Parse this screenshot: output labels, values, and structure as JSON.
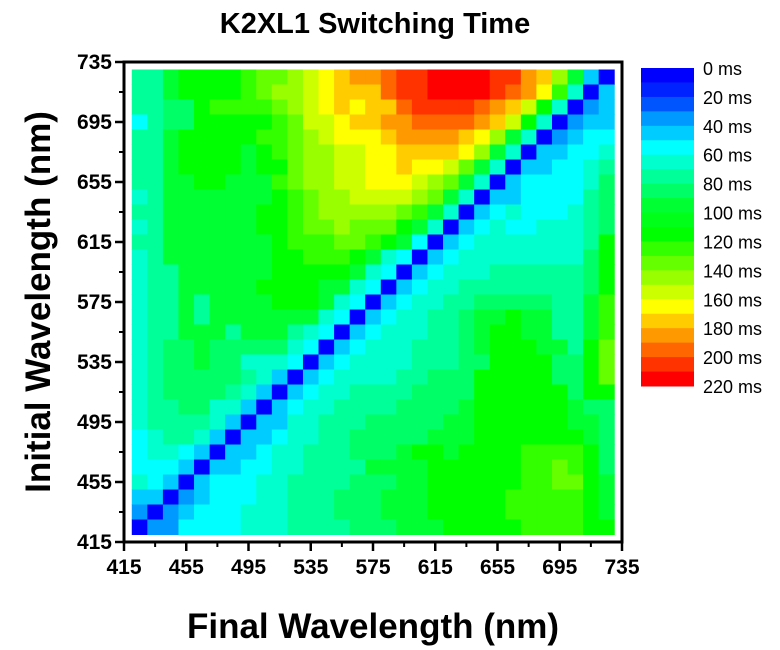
{
  "chart_data": {
    "type": "heatmap",
    "title": "K2XL1 Switching Time",
    "xlabel": "Final Wavelength (nm)",
    "ylabel": "Initial Wavelength (nm)",
    "xlim": [
      415,
      735
    ],
    "ylim": [
      415,
      735
    ],
    "xticks": [
      "415",
      "455",
      "495",
      "535",
      "575",
      "615",
      "655",
      "695",
      "735"
    ],
    "yticks": [
      "415",
      "455",
      "495",
      "535",
      "575",
      "615",
      "655",
      "695",
      "735"
    ],
    "x": [
      425,
      435,
      445,
      455,
      465,
      475,
      485,
      495,
      505,
      515,
      525,
      535,
      545,
      555,
      565,
      575,
      585,
      595,
      605,
      615,
      625,
      635,
      645,
      655,
      665,
      675,
      685,
      695,
      705,
      715,
      725
    ],
    "y_rows_top_to_bottom": [
      725,
      715,
      705,
      695,
      685,
      675,
      665,
      655,
      645,
      635,
      625,
      615,
      605,
      595,
      585,
      575,
      565,
      555,
      545,
      535,
      525,
      515,
      505,
      495,
      485,
      475,
      465,
      455,
      445,
      435,
      425
    ],
    "cell_size_nm": 10,
    "z_unit": "ms",
    "z": [
      [
        75,
        75,
        95,
        115,
        115,
        115,
        115,
        125,
        135,
        135,
        145,
        155,
        165,
        175,
        185,
        185,
        195,
        205,
        205,
        215,
        215,
        215,
        215,
        205,
        205,
        185,
        175,
        145,
        95,
        45,
        5
      ],
      [
        75,
        75,
        95,
        115,
        115,
        115,
        115,
        125,
        135,
        145,
        145,
        155,
        165,
        175,
        175,
        175,
        195,
        205,
        205,
        215,
        215,
        215,
        215,
        205,
        195,
        185,
        165,
        125,
        65,
        5,
        45
      ],
      [
        75,
        75,
        85,
        85,
        115,
        125,
        125,
        125,
        125,
        135,
        145,
        155,
        165,
        175,
        165,
        175,
        175,
        195,
        205,
        205,
        205,
        205,
        195,
        185,
        175,
        155,
        115,
        65,
        5,
        35,
        45
      ],
      [
        55,
        75,
        85,
        85,
        115,
        115,
        115,
        115,
        115,
        125,
        135,
        155,
        155,
        165,
        175,
        175,
        185,
        185,
        195,
        195,
        195,
        195,
        185,
        175,
        155,
        115,
        65,
        5,
        35,
        45,
        45
      ],
      [
        75,
        75,
        95,
        115,
        115,
        115,
        115,
        115,
        125,
        125,
        135,
        145,
        155,
        165,
        165,
        165,
        175,
        185,
        185,
        185,
        185,
        175,
        165,
        145,
        95,
        65,
        5,
        35,
        45,
        55,
        55
      ],
      [
        75,
        75,
        95,
        115,
        115,
        115,
        115,
        95,
        115,
        125,
        135,
        145,
        145,
        155,
        155,
        165,
        165,
        175,
        175,
        175,
        175,
        165,
        145,
        95,
        65,
        5,
        45,
        45,
        55,
        55,
        65
      ],
      [
        75,
        75,
        95,
        115,
        115,
        115,
        115,
        95,
        115,
        115,
        135,
        145,
        145,
        155,
        155,
        165,
        165,
        175,
        165,
        165,
        155,
        135,
        95,
        65,
        5,
        45,
        45,
        55,
        55,
        65,
        75
      ],
      [
        75,
        75,
        95,
        95,
        115,
        115,
        95,
        95,
        95,
        125,
        135,
        145,
        145,
        155,
        155,
        165,
        165,
        165,
        155,
        145,
        135,
        95,
        65,
        5,
        45,
        55,
        55,
        55,
        55,
        65,
        85
      ],
      [
        65,
        75,
        95,
        95,
        95,
        95,
        95,
        95,
        95,
        115,
        125,
        135,
        145,
        145,
        155,
        155,
        155,
        155,
        145,
        135,
        95,
        65,
        5,
        45,
        45,
        55,
        55,
        55,
        55,
        75,
        85
      ],
      [
        75,
        75,
        95,
        95,
        95,
        95,
        95,
        95,
        115,
        115,
        125,
        135,
        145,
        145,
        145,
        145,
        145,
        135,
        125,
        95,
        65,
        5,
        45,
        55,
        65,
        55,
        55,
        55,
        65,
        75,
        85
      ],
      [
        65,
        75,
        95,
        95,
        95,
        95,
        95,
        95,
        115,
        115,
        125,
        135,
        135,
        145,
        135,
        135,
        135,
        115,
        95,
        65,
        5,
        45,
        55,
        65,
        55,
        55,
        65,
        65,
        65,
        75,
        85
      ],
      [
        75,
        75,
        95,
        95,
        95,
        95,
        95,
        95,
        95,
        115,
        125,
        125,
        125,
        135,
        135,
        125,
        115,
        95,
        55,
        5,
        45,
        55,
        65,
        65,
        65,
        65,
        65,
        65,
        65,
        75,
        115
      ],
      [
        65,
        75,
        95,
        95,
        95,
        95,
        95,
        95,
        95,
        115,
        115,
        125,
        125,
        125,
        115,
        95,
        65,
        55,
        5,
        45,
        55,
        65,
        65,
        65,
        65,
        65,
        65,
        65,
        65,
        85,
        115
      ],
      [
        65,
        75,
        75,
        95,
        95,
        95,
        95,
        95,
        95,
        115,
        115,
        115,
        115,
        115,
        95,
        65,
        55,
        5,
        45,
        55,
        65,
        65,
        65,
        75,
        75,
        75,
        75,
        75,
        75,
        85,
        115
      ],
      [
        65,
        75,
        75,
        95,
        95,
        95,
        95,
        95,
        115,
        115,
        115,
        115,
        95,
        95,
        65,
        55,
        5,
        45,
        55,
        65,
        65,
        75,
        75,
        75,
        75,
        75,
        75,
        75,
        75,
        85,
        115
      ],
      [
        65,
        75,
        75,
        95,
        75,
        95,
        95,
        95,
        95,
        115,
        115,
        115,
        95,
        65,
        55,
        5,
        45,
        55,
        65,
        65,
        75,
        75,
        85,
        85,
        85,
        85,
        85,
        75,
        75,
        95,
        125
      ],
      [
        65,
        75,
        75,
        95,
        75,
        95,
        95,
        95,
        95,
        95,
        95,
        95,
        65,
        55,
        5,
        45,
        55,
        65,
        65,
        75,
        75,
        85,
        95,
        95,
        115,
        95,
        95,
        75,
        75,
        95,
        125
      ],
      [
        65,
        75,
        75,
        95,
        95,
        95,
        75,
        95,
        95,
        95,
        75,
        65,
        55,
        5,
        45,
        55,
        65,
        65,
        65,
        75,
        75,
        85,
        95,
        115,
        115,
        95,
        95,
        75,
        75,
        95,
        125
      ],
      [
        65,
        75,
        85,
        85,
        95,
        85,
        85,
        85,
        85,
        85,
        65,
        55,
        5,
        45,
        55,
        65,
        65,
        65,
        75,
        75,
        75,
        85,
        95,
        115,
        115,
        115,
        95,
        95,
        75,
        115,
        135
      ],
      [
        65,
        75,
        85,
        85,
        95,
        85,
        85,
        65,
        65,
        65,
        55,
        5,
        45,
        55,
        65,
        65,
        65,
        65,
        75,
        75,
        75,
        85,
        85,
        115,
        115,
        115,
        115,
        85,
        85,
        115,
        135
      ],
      [
        65,
        75,
        85,
        85,
        85,
        85,
        85,
        75,
        65,
        45,
        5,
        45,
        55,
        65,
        65,
        65,
        65,
        75,
        75,
        85,
        85,
        85,
        115,
        115,
        115,
        115,
        115,
        85,
        85,
        115,
        135
      ],
      [
        65,
        75,
        85,
        85,
        85,
        85,
        75,
        65,
        45,
        5,
        45,
        55,
        65,
        65,
        75,
        75,
        75,
        75,
        85,
        85,
        85,
        85,
        115,
        115,
        115,
        115,
        115,
        115,
        85,
        115,
        115
      ],
      [
        65,
        75,
        75,
        85,
        85,
        65,
        65,
        45,
        5,
        45,
        55,
        65,
        65,
        75,
        75,
        75,
        75,
        85,
        85,
        85,
        85,
        95,
        115,
        115,
        115,
        115,
        115,
        115,
        95,
        85,
        85
      ],
      [
        65,
        75,
        75,
        75,
        75,
        65,
        45,
        5,
        45,
        45,
        65,
        65,
        75,
        75,
        75,
        85,
        85,
        85,
        85,
        85,
        95,
        95,
        115,
        115,
        115,
        115,
        115,
        115,
        95,
        95,
        85
      ],
      [
        55,
        65,
        75,
        75,
        65,
        45,
        5,
        45,
        45,
        55,
        65,
        65,
        75,
        75,
        85,
        85,
        85,
        85,
        85,
        95,
        95,
        95,
        115,
        115,
        115,
        115,
        115,
        115,
        115,
        95,
        85
      ],
      [
        55,
        65,
        65,
        55,
        45,
        5,
        45,
        45,
        55,
        65,
        65,
        75,
        75,
        75,
        85,
        85,
        85,
        95,
        115,
        115,
        95,
        115,
        115,
        115,
        115,
        125,
        125,
        125,
        125,
        115,
        85
      ],
      [
        55,
        55,
        55,
        45,
        5,
        45,
        45,
        55,
        55,
        65,
        65,
        75,
        75,
        75,
        75,
        95,
        95,
        95,
        95,
        115,
        115,
        115,
        115,
        115,
        115,
        125,
        125,
        135,
        125,
        115,
        85
      ],
      [
        65,
        55,
        45,
        5,
        45,
        55,
        55,
        55,
        65,
        65,
        75,
        75,
        75,
        75,
        85,
        85,
        85,
        95,
        95,
        115,
        115,
        115,
        115,
        115,
        115,
        125,
        125,
        135,
        135,
        115,
        95
      ],
      [
        45,
        45,
        5,
        35,
        45,
        55,
        55,
        55,
        65,
        65,
        75,
        75,
        75,
        85,
        85,
        85,
        95,
        95,
        95,
        115,
        115,
        115,
        115,
        115,
        125,
        125,
        125,
        125,
        125,
        115,
        95
      ],
      [
        35,
        5,
        35,
        45,
        55,
        55,
        55,
        65,
        65,
        65,
        75,
        75,
        75,
        85,
        85,
        85,
        95,
        95,
        95,
        115,
        115,
        115,
        115,
        115,
        125,
        125,
        125,
        125,
        125,
        115,
        95
      ],
      [
        5,
        35,
        35,
        55,
        55,
        55,
        55,
        65,
        65,
        65,
        75,
        75,
        75,
        75,
        85,
        85,
        85,
        95,
        95,
        95,
        115,
        115,
        115,
        115,
        115,
        125,
        125,
        125,
        125,
        115,
        115
      ]
    ],
    "colorbar": {
      "range": [
        0,
        220
      ],
      "step": 10,
      "labels": [
        "0 ms",
        "20 ms",
        "40 ms",
        "60 ms",
        "80 ms",
        "100 ms",
        "120 ms",
        "140 ms",
        "160 ms",
        "180 ms",
        "200 ms",
        "220 ms"
      ],
      "colors": [
        "#0000FF",
        "#0022FF",
        "#0055FF",
        "#0099FF",
        "#00CCFF",
        "#00FFFF",
        "#00FFCC",
        "#00FF99",
        "#00FF66",
        "#00FF33",
        "#00FF19",
        "#00FF00",
        "#33FF00",
        "#66FF00",
        "#99FF00",
        "#CCFF00",
        "#FFFF00",
        "#FFCC00",
        "#FF9900",
        "#FF6600",
        "#FF3300",
        "#FF0000"
      ],
      "placement": "right"
    },
    "grid": false
  }
}
